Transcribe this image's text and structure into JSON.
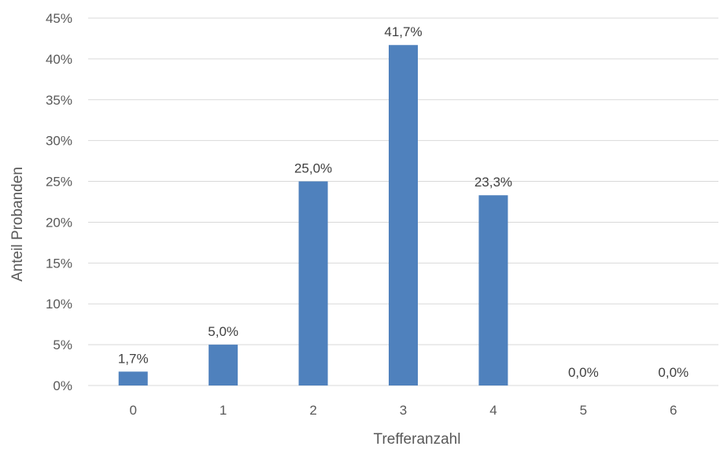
{
  "chart_data": {
    "type": "bar",
    "categories": [
      "0",
      "1",
      "2",
      "3",
      "4",
      "5",
      "6"
    ],
    "values": [
      1.7,
      5.0,
      25.0,
      41.7,
      23.3,
      0.0,
      0.0
    ],
    "data_labels": [
      "1,7%",
      "5,0%",
      "25,0%",
      "41,7%",
      "23,3%",
      "0,0%",
      "0,0%"
    ],
    "title": "",
    "xlabel": "Trefferanzahl",
    "ylabel": "Anteil Probanden",
    "ylim": [
      0,
      45
    ],
    "yticks": [
      0,
      5,
      10,
      15,
      20,
      25,
      30,
      35,
      40,
      45
    ],
    "ytick_labels": [
      "0%",
      "5%",
      "10%",
      "15%",
      "20%",
      "25%",
      "30%",
      "35%",
      "40%",
      "45%"
    ],
    "grid": true,
    "bar_color": "#4f81bd"
  }
}
